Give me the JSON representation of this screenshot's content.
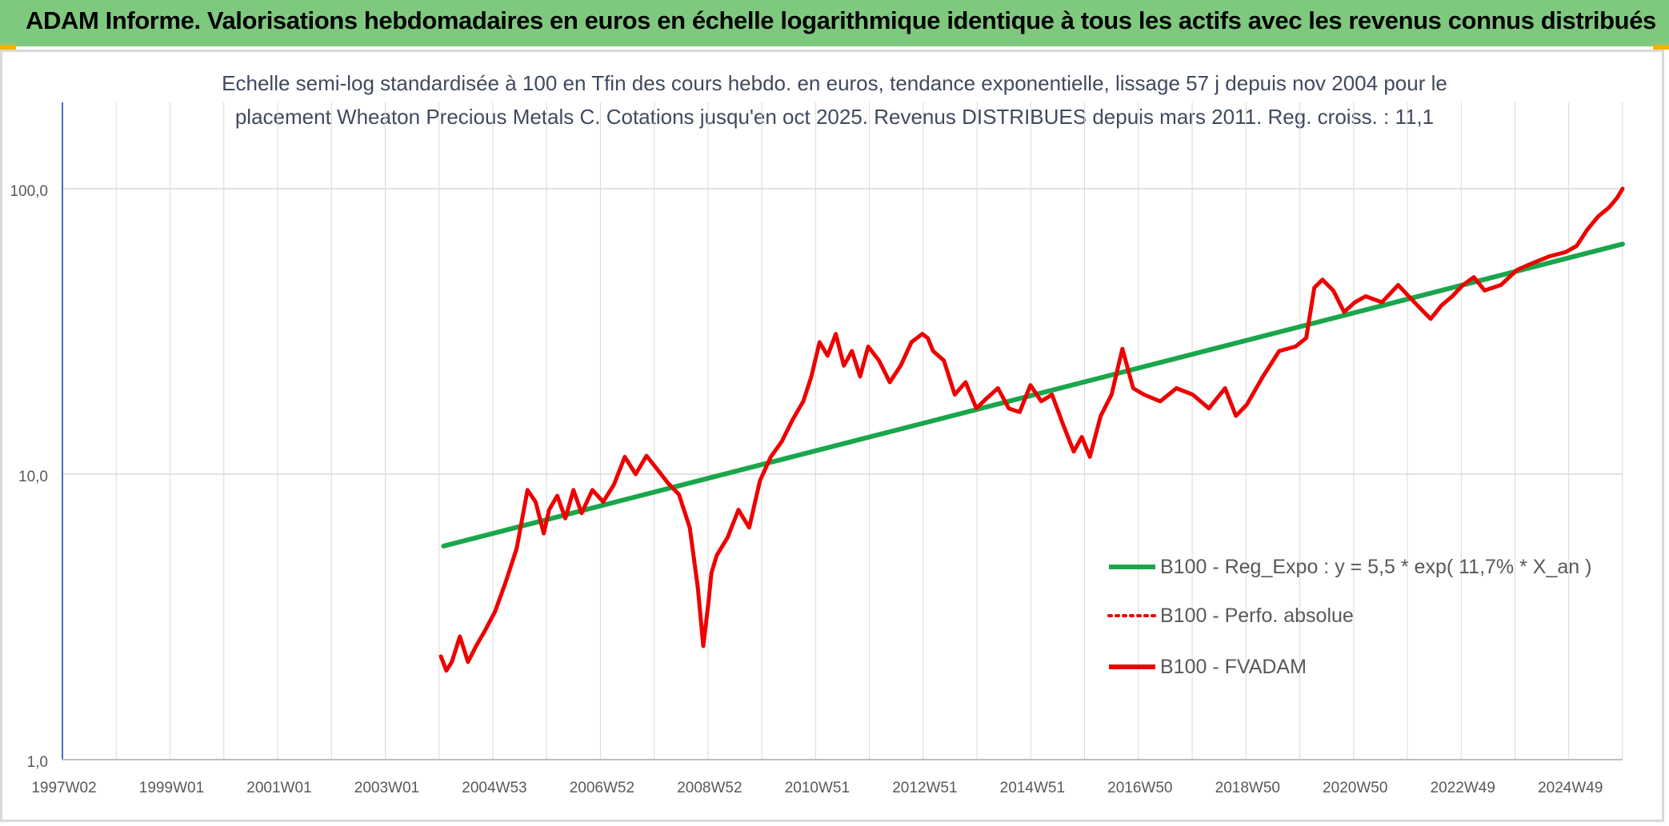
{
  "header": {
    "title": "ADAM Informe. Valorisations hebdomadaires en euros en échelle logarithmique identique à tous les actifs avec les revenus connus distribués"
  },
  "colors": {
    "header_bg": "#7fc97f",
    "accent": "#f0b400",
    "fvadam": "#ee0000",
    "regression": "#1aa64b",
    "grid": "#d9d9d9",
    "axis": "#4472c4"
  },
  "chart_data": {
    "type": "line",
    "scale": "log",
    "title_line1": "Echelle semi-log standardisée à 100 en Tfin des cours hebdo. en euros, tendance exponentielle, lissage 57 j depuis nov 2004 pour le",
    "title_line2": "placement Wheaton Precious Metals C. Cotations jusqu'en oct 2025. Revenus DISTRIBUES depuis mars 2011. Reg. croiss. : 11,1",
    "xlabel": "",
    "ylabel": "",
    "x_range": [
      1997.0,
      2025.85
    ],
    "ylim": [
      1,
      200
    ],
    "y_ticks": [
      {
        "value": 1,
        "label": "1,0"
      },
      {
        "value": 10,
        "label": "10,0"
      },
      {
        "value": 100,
        "label": "100,0"
      }
    ],
    "x_tick_labels": [
      "1997W02",
      "1999W01",
      "2001W01",
      "2003W01",
      "2004W53",
      "2006W52",
      "2008W52",
      "2010W51",
      "2012W51",
      "2014W51",
      "2016W50",
      "2018W50",
      "2020W50",
      "2022W49",
      "2024W49"
    ],
    "grid": true,
    "legend_position": "right",
    "series": [
      {
        "name": "B100 - Reg_Expo : y = 5,5 * exp( 11,7% *  X_an )",
        "style": "solid-thick",
        "color": "#1aa64b",
        "x": [
          2004.05,
          2025.85
        ],
        "y": [
          5.6,
          64
        ]
      },
      {
        "name": "B100 - Perfo. absolue",
        "style": "dotted",
        "color": "#ee0000",
        "x": [],
        "y": []
      },
      {
        "name": "B100 - FVADAM",
        "style": "solid",
        "color": "#ee0000",
        "x": [
          2004.0,
          2004.1,
          2004.2,
          2004.35,
          2004.5,
          2004.65,
          2004.8,
          2005.0,
          2005.2,
          2005.4,
          2005.6,
          2005.75,
          2005.9,
          2006.0,
          2006.15,
          2006.3,
          2006.45,
          2006.6,
          2006.8,
          2007.0,
          2007.2,
          2007.4,
          2007.6,
          2007.8,
          2008.0,
          2008.2,
          2008.4,
          2008.6,
          2008.75,
          2008.85,
          2008.95,
          2009.0,
          2009.1,
          2009.3,
          2009.5,
          2009.7,
          2009.9,
          2010.1,
          2010.3,
          2010.5,
          2010.7,
          2010.85,
          2011.0,
          2011.15,
          2011.3,
          2011.45,
          2011.6,
          2011.75,
          2011.9,
          2012.1,
          2012.3,
          2012.5,
          2012.7,
          2012.9,
          2013.0,
          2013.1,
          2013.3,
          2013.5,
          2013.7,
          2013.9,
          2014.1,
          2014.3,
          2014.5,
          2014.7,
          2014.9,
          2015.1,
          2015.3,
          2015.5,
          2015.7,
          2015.85,
          2016.0,
          2016.2,
          2016.4,
          2016.6,
          2016.8,
          2017.0,
          2017.3,
          2017.6,
          2017.9,
          2018.2,
          2018.5,
          2018.7,
          2018.9,
          2019.2,
          2019.5,
          2019.8,
          2020.0,
          2020.15,
          2020.3,
          2020.5,
          2020.7,
          2020.9,
          2021.1,
          2021.4,
          2021.7,
          2022.0,
          2022.3,
          2022.5,
          2022.7,
          2022.9,
          2023.1,
          2023.3,
          2023.6,
          2023.9,
          2024.2,
          2024.5,
          2024.8,
          2025.0,
          2025.2,
          2025.4,
          2025.6,
          2025.75,
          2025.85
        ],
        "y": [
          2.3,
          2.05,
          2.2,
          2.7,
          2.2,
          2.5,
          2.8,
          3.3,
          4.2,
          5.5,
          8.8,
          8.0,
          6.2,
          7.5,
          8.4,
          7.0,
          8.8,
          7.3,
          8.8,
          8.0,
          9.2,
          11.5,
          10.0,
          11.6,
          10.4,
          9.3,
          8.5,
          6.5,
          4.0,
          2.5,
          3.6,
          4.5,
          5.2,
          6.0,
          7.5,
          6.5,
          9.5,
          11.5,
          13.0,
          15.5,
          18.0,
          22.0,
          29.0,
          26.0,
          31.0,
          24.0,
          27.0,
          22.0,
          28.0,
          25.0,
          21.0,
          24.0,
          29.0,
          31.0,
          30.0,
          27.0,
          25.0,
          19.0,
          21.0,
          17.0,
          18.5,
          20.0,
          17.0,
          16.5,
          20.5,
          18.0,
          19.0,
          15.0,
          12.0,
          13.5,
          11.5,
          16.0,
          19.0,
          27.5,
          20.0,
          19.0,
          18.0,
          20.0,
          19.0,
          17.0,
          20.0,
          16.0,
          17.5,
          22.0,
          27.0,
          28.0,
          30.0,
          45.0,
          48.0,
          44.0,
          37.0,
          40.0,
          42.0,
          40.0,
          46.0,
          40.0,
          35.0,
          39.0,
          42.0,
          46.0,
          49.0,
          44.0,
          46.0,
          52.0,
          55.0,
          58.0,
          60.0,
          63.0,
          72.0,
          80.0,
          86.0,
          93.0,
          100.0
        ]
      }
    ]
  }
}
